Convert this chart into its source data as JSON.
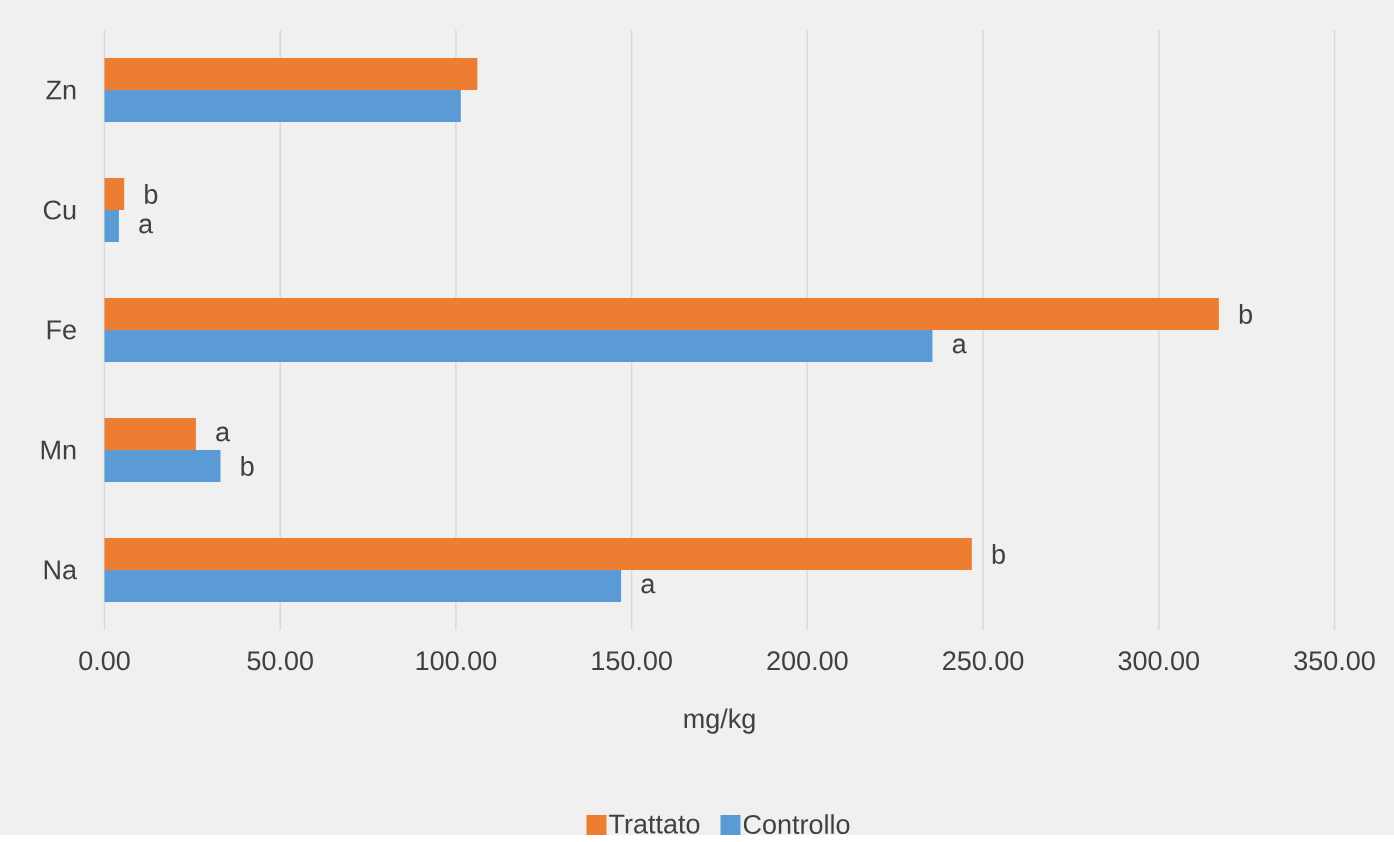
{
  "chart_data": {
    "type": "bar",
    "orientation": "horizontal",
    "xlabel": "mg/kg",
    "categories": [
      "Zn",
      "Cu",
      "Fe",
      "Mn",
      "Na"
    ],
    "series": [
      {
        "name": "Trattato",
        "color": "#ed7d31",
        "values": [
          106.1,
          5.6,
          317.1,
          26.0,
          246.8
        ],
        "value_labels": [
          null,
          "b",
          "b",
          "a",
          "b"
        ]
      },
      {
        "name": "Controllo",
        "color": "#5b9bd5",
        "values": [
          101.4,
          4.1,
          235.6,
          33.0,
          147.0
        ],
        "value_labels": [
          null,
          "a",
          "a",
          "b",
          "a"
        ]
      }
    ],
    "xlim": [
      0,
      350
    ],
    "xticks": [
      {
        "value": 0,
        "label": "0.00"
      },
      {
        "value": 50,
        "label": "50.00"
      },
      {
        "value": 100,
        "label": "100.00"
      },
      {
        "value": 150,
        "label": "150.00"
      },
      {
        "value": 200,
        "label": "200.00"
      },
      {
        "value": 250,
        "label": "250.00"
      },
      {
        "value": 300,
        "label": "300.00"
      },
      {
        "value": 350,
        "label": "350.00"
      }
    ],
    "grid": "x",
    "legend": "bottom"
  }
}
